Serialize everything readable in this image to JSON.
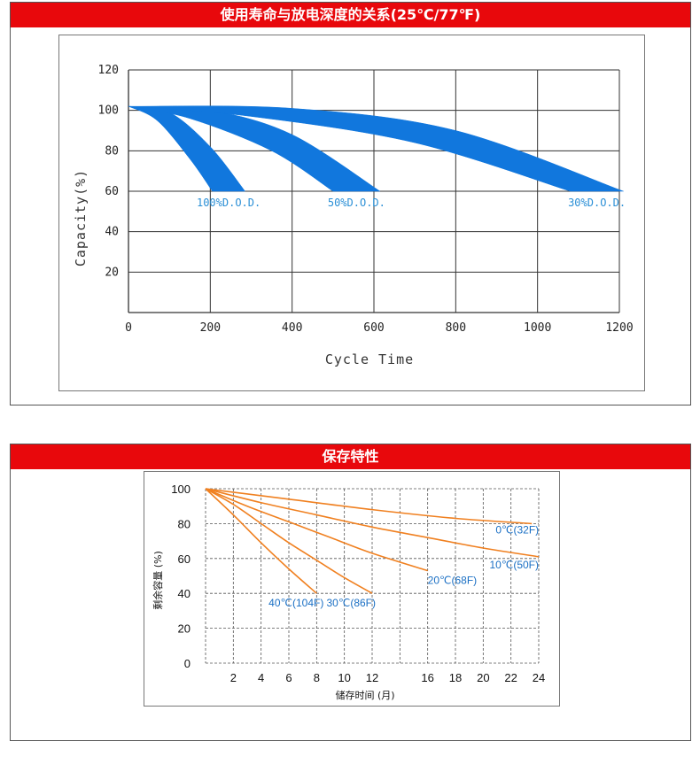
{
  "colors": {
    "header_bg": "#e8080c",
    "band": "#1177dd",
    "curve": "#f08020",
    "temp_label": "#1a6fc4",
    "dod_label": "#2a8fd6"
  },
  "chart_data": [
    {
      "type": "area",
      "title": "使用寿命与放电深度的关系(25℃/77℉)",
      "xlabel": "Cycle Time",
      "ylabel": "Capacity(%)",
      "xlim": [
        0,
        1200
      ],
      "ylim": [
        0,
        120
      ],
      "x_ticks": [
        "0",
        "200",
        "400",
        "600",
        "800",
        "1000",
        "1200"
      ],
      "y_ticks": [
        "20",
        "40",
        "60",
        "80",
        "100",
        "120"
      ],
      "grid": true,
      "series": [
        {
          "name": "100%D.O.D.",
          "start": [
            0,
            102
          ],
          "end_x": [
            205,
            285
          ],
          "end_y": 60,
          "upper": [
            [
              0,
              102
            ],
            [
              100,
              99
            ],
            [
              200,
              82
            ],
            [
              285,
              60
            ]
          ],
          "lower": [
            [
              0,
              102
            ],
            [
              70,
              95
            ],
            [
              150,
              76
            ],
            [
              205,
              60
            ]
          ]
        },
        {
          "name": "50%D.O.D.",
          "start": [
            0,
            102
          ],
          "end_x": [
            500,
            615
          ],
          "end_y": 60,
          "upper": [
            [
              0,
              102
            ],
            [
              200,
              100
            ],
            [
              400,
              88
            ],
            [
              615,
              60
            ]
          ],
          "lower": [
            [
              0,
              102
            ],
            [
              150,
              96
            ],
            [
              350,
              80
            ],
            [
              500,
              60
            ]
          ]
        },
        {
          "name": "30%D.O.D.",
          "start": [
            0,
            102
          ],
          "end_x": [
            1080,
            1210
          ],
          "end_y": 60,
          "upper": [
            [
              0,
              102
            ],
            [
              400,
              101
            ],
            [
              800,
              90
            ],
            [
              1210,
              60
            ]
          ],
          "lower": [
            [
              0,
              102
            ],
            [
              300,
              97
            ],
            [
              700,
              84
            ],
            [
              1080,
              60
            ]
          ]
        }
      ]
    },
    {
      "type": "line",
      "title": "保存特性",
      "xlabel": "储存时间 (月)",
      "ylabel": "剩余容量 (%)",
      "xlim": [
        0,
        24
      ],
      "ylim": [
        0,
        100
      ],
      "x_ticks": [
        "2",
        "4",
        "6",
        "8",
        "10",
        "12",
        "16",
        "18",
        "20",
        "22",
        "24"
      ],
      "y_ticks": [
        "0",
        "20",
        "40",
        "60",
        "80",
        "100"
      ],
      "grid": true,
      "series": [
        {
          "name": "0℃(32F)",
          "points": [
            [
              0,
              100
            ],
            [
              6,
              94
            ],
            [
              12,
              88
            ],
            [
              18,
              83
            ],
            [
              23.5,
              80
            ]
          ]
        },
        {
          "name": "10℃(50F)",
          "points": [
            [
              0,
              100
            ],
            [
              4,
              92
            ],
            [
              8,
              85
            ],
            [
              12,
              78
            ],
            [
              16,
              72
            ],
            [
              20,
              66
            ],
            [
              24,
              61
            ]
          ]
        },
        {
          "name": "20℃(68F)",
          "points": [
            [
              0,
              100
            ],
            [
              3,
              90
            ],
            [
              6,
              81
            ],
            [
              9,
              72
            ],
            [
              12,
              63
            ],
            [
              16,
              53
            ]
          ]
        },
        {
          "name": "30℃(86F)",
          "points": [
            [
              0,
              100
            ],
            [
              2,
              91
            ],
            [
              4,
              80
            ],
            [
              6,
              69
            ],
            [
              8,
              59
            ],
            [
              10,
              49
            ],
            [
              12,
              40
            ]
          ]
        },
        {
          "name": "40℃(104F)",
          "points": [
            [
              0,
              100
            ],
            [
              2,
              85
            ],
            [
              4,
              69
            ],
            [
              6,
              54
            ],
            [
              8,
              40
            ]
          ]
        }
      ]
    }
  ]
}
